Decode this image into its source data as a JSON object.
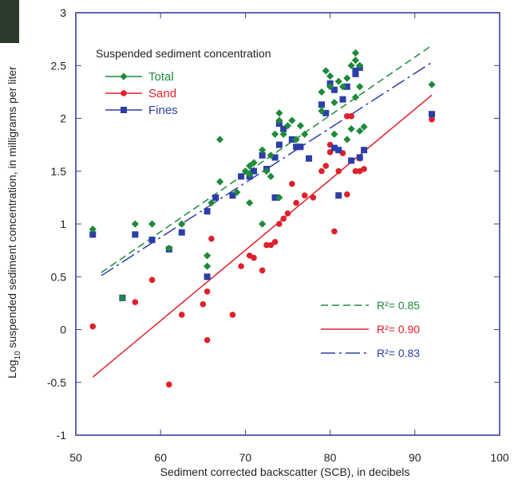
{
  "corner_mark_color": "#2b3a2c",
  "chart_data": {
    "type": "scatter",
    "title": "",
    "xlabel": "Sediment corrected backscatter (SCB), in decibels",
    "ylabel": "Log10 suspended sediment concentration, in milligrams per liter",
    "ylabel_parts": {
      "prefix": "Log",
      "sub": "10",
      "rest": " suspended sediment concentration, in milligrams per liter"
    },
    "xlim": [
      50,
      100
    ],
    "ylim": [
      -1,
      3
    ],
    "x_ticks": [
      50,
      60,
      70,
      80,
      90,
      100
    ],
    "x_tick_labels": [
      "50",
      "60",
      "70",
      "80",
      "90",
      "100"
    ],
    "y_ticks": [
      -1,
      -0.5,
      0,
      0.5,
      1,
      1.5,
      2,
      2.5,
      3
    ],
    "y_tick_labels": [
      "-1",
      "-0.5",
      "0",
      "0.5",
      "1",
      "1.5",
      "2",
      "2.5",
      "3"
    ],
    "grid": false,
    "legend_title": "Suspended sediment concentration",
    "legend_position": "top-left",
    "series": [
      {
        "name": "Total",
        "color": "#1e8a3a",
        "marker": "diamond",
        "points": [
          [
            52,
            0.95
          ],
          [
            55.5,
            0.3
          ],
          [
            57,
            1.0
          ],
          [
            59,
            1.0
          ],
          [
            61,
            0.77
          ],
          [
            62.5,
            1.0
          ],
          [
            65.5,
            0.7
          ],
          [
            65.5,
            0.6
          ],
          [
            66,
            1.2
          ],
          [
            67,
            1.8
          ],
          [
            67,
            1.4
          ],
          [
            69,
            1.3
          ],
          [
            70,
            1.5
          ],
          [
            70.5,
            1.55
          ],
          [
            70.5,
            1.47
          ],
          [
            71,
            1.58
          ],
          [
            72,
            1.7
          ],
          [
            72.5,
            1.5
          ],
          [
            73,
            1.65
          ],
          [
            73,
            1.45
          ],
          [
            73.5,
            1.85
          ],
          [
            74,
            2.05
          ],
          [
            74,
            1.98
          ],
          [
            74.5,
            1.85
          ],
          [
            75,
            1.93
          ],
          [
            75.5,
            1.98
          ],
          [
            76,
            1.8
          ],
          [
            76.5,
            1.93
          ],
          [
            77,
            1.85
          ],
          [
            72,
            1.0
          ],
          [
            70.5,
            1.2
          ],
          [
            74,
            1.25
          ],
          [
            79,
            2.25
          ],
          [
            79,
            2.07
          ],
          [
            79.5,
            2.45
          ],
          [
            80,
            2.4
          ],
          [
            80,
            2.3
          ],
          [
            80.5,
            2.15
          ],
          [
            80.5,
            1.85
          ],
          [
            81,
            2.35
          ],
          [
            81.5,
            2.3
          ],
          [
            82,
            2.38
          ],
          [
            82,
            1.8
          ],
          [
            82.5,
            2.5
          ],
          [
            82.5,
            1.9
          ],
          [
            83,
            2.55
          ],
          [
            83,
            2.62
          ],
          [
            83,
            2.2
          ],
          [
            83.5,
            2.5
          ],
          [
            83.5,
            2.3
          ],
          [
            83.5,
            1.88
          ],
          [
            84,
            1.92
          ],
          [
            92,
            2.32
          ]
        ]
      },
      {
        "name": "Sand",
        "color": "#e0202a",
        "marker": "circle",
        "points": [
          [
            52,
            0.03
          ],
          [
            57,
            0.26
          ],
          [
            59,
            0.47
          ],
          [
            61,
            -0.52
          ],
          [
            62.5,
            0.14
          ],
          [
            65,
            0.24
          ],
          [
            65.5,
            0.36
          ],
          [
            65.5,
            -0.1
          ],
          [
            66,
            0.86
          ],
          [
            68.5,
            0.14
          ],
          [
            69.5,
            0.6
          ],
          [
            70.5,
            0.7
          ],
          [
            71,
            0.68
          ],
          [
            72,
            0.56
          ],
          [
            72.5,
            0.8
          ],
          [
            73,
            0.8
          ],
          [
            73.5,
            0.83
          ],
          [
            74,
            1.0
          ],
          [
            74.5,
            1.05
          ],
          [
            75,
            1.1
          ],
          [
            75.5,
            1.38
          ],
          [
            76,
            1.2
          ],
          [
            77,
            1.27
          ],
          [
            78,
            1.25
          ],
          [
            79,
            1.5
          ],
          [
            79.5,
            1.55
          ],
          [
            80,
            1.75
          ],
          [
            80,
            1.68
          ],
          [
            80.5,
            0.93
          ],
          [
            81,
            1.5
          ],
          [
            81.5,
            1.67
          ],
          [
            82,
            2.02
          ],
          [
            82,
            1.28
          ],
          [
            82.5,
            2.02
          ],
          [
            83,
            1.5
          ],
          [
            83.5,
            1.62
          ],
          [
            84,
            1.52
          ],
          [
            83.5,
            1.5
          ],
          [
            92,
            1.99
          ]
        ]
      },
      {
        "name": "Fines",
        "color": "#2b3ea8",
        "marker": "square",
        "points": [
          [
            52,
            0.9
          ],
          [
            55.5,
            0.3
          ],
          [
            57,
            0.9
          ],
          [
            59,
            0.85
          ],
          [
            61,
            0.76
          ],
          [
            62.5,
            0.92
          ],
          [
            65.5,
            0.5
          ],
          [
            65.5,
            1.12
          ],
          [
            66.5,
            1.25
          ],
          [
            68.5,
            1.27
          ],
          [
            69.5,
            1.45
          ],
          [
            70.5,
            1.45
          ],
          [
            71,
            1.5
          ],
          [
            72,
            1.65
          ],
          [
            72.5,
            1.52
          ],
          [
            73.5,
            1.63
          ],
          [
            73.5,
            1.25
          ],
          [
            74,
            1.75
          ],
          [
            74,
            1.95
          ],
          [
            74.5,
            1.9
          ],
          [
            75.5,
            1.8
          ],
          [
            76,
            1.73
          ],
          [
            76.5,
            1.73
          ],
          [
            77.5,
            1.62
          ],
          [
            79,
            2.13
          ],
          [
            79.5,
            2.05
          ],
          [
            80,
            2.33
          ],
          [
            80.5,
            2.27
          ],
          [
            80.5,
            1.72
          ],
          [
            81,
            1.27
          ],
          [
            81,
            1.7
          ],
          [
            81.5,
            2.18
          ],
          [
            82,
            2.3
          ],
          [
            82.5,
            1.6
          ],
          [
            83,
            2.42
          ],
          [
            83,
            2.45
          ],
          [
            83.5,
            1.63
          ],
          [
            83.5,
            2.48
          ],
          [
            84,
            1.7
          ],
          [
            92,
            2.04
          ]
        ]
      }
    ],
    "fit_lines": [
      {
        "name": "Total",
        "color": "#1e8a3a",
        "dash": "dashed",
        "x": [
          53,
          92
        ],
        "y": [
          0.54,
          2.69
        ],
        "r2_label": "R²= 0.85"
      },
      {
        "name": "Sand",
        "color": "#e0202a",
        "dash": "solid",
        "x": [
          52,
          92
        ],
        "y": [
          -0.45,
          2.22
        ],
        "r2_label": "R²= 0.90"
      },
      {
        "name": "Fines",
        "color": "#2b3ea8",
        "dash": "longdash",
        "x": [
          53,
          92
        ],
        "y": [
          0.51,
          2.53
        ],
        "r2_label": "R²= 0.83"
      }
    ],
    "r2_legend_position": "bottom-right"
  }
}
